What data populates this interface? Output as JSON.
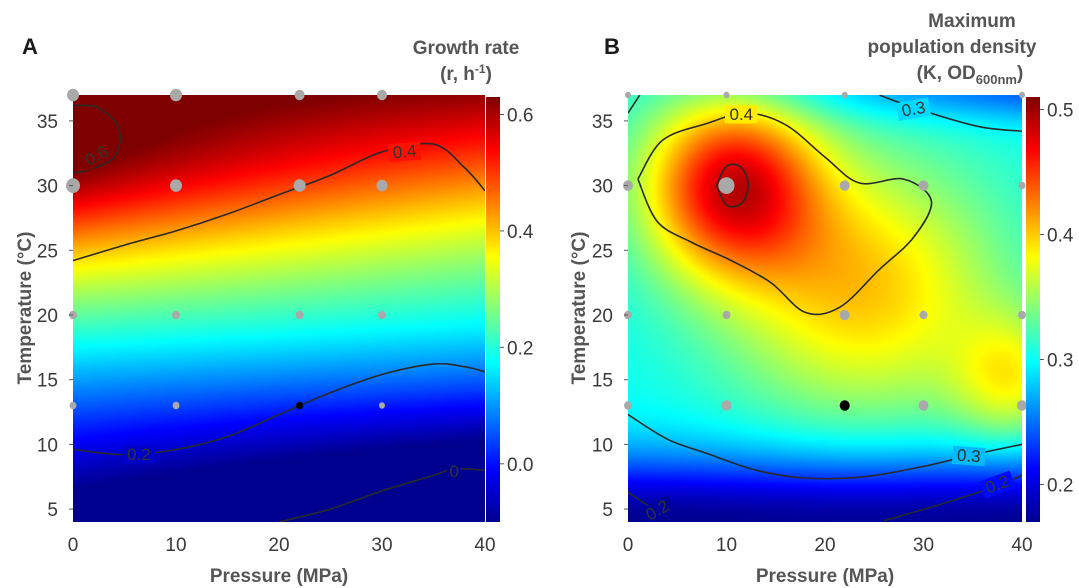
{
  "chart_data": [
    {
      "type": "heatmap",
      "panel_label": "A",
      "colorbar_title": [
        "Growth rate",
        "(r, h",
        "-1",
        ")"
      ],
      "xlabel": "Pressure (MPa)",
      "ylabel": "Temperature (°C)",
      "xlim": [
        0,
        40
      ],
      "ylim": [
        4,
        37
      ],
      "x_ticks": [
        "0",
        "10",
        "20",
        "30",
        "40"
      ],
      "y_ticks": [
        "5",
        "10",
        "15",
        "20",
        "25",
        "30",
        "35"
      ],
      "colorbar_range": [
        -0.1,
        0.63
      ],
      "colorbar_ticks": [
        "0.0",
        "0.2",
        "0.4",
        "0.6"
      ],
      "contours": [
        {
          "level": 0.6,
          "label": "0.6",
          "points": [
            [
              0,
              36.2
            ],
            [
              2.5,
              36.0
            ],
            [
              4.5,
              34.3
            ],
            [
              4.0,
              32.2
            ],
            [
              1.5,
              31.2
            ],
            [
              0,
              31.0
            ]
          ]
        },
        {
          "level": 0.4,
          "label": "0.4",
          "points": [
            [
              0,
              24.2
            ],
            [
              5,
              25.4
            ],
            [
              10,
              26.5
            ],
            [
              15,
              27.8
            ],
            [
              20,
              29.3
            ],
            [
              25,
              30.8
            ],
            [
              30,
              32.6
            ],
            [
              35,
              33.2
            ],
            [
              38,
              31.4
            ],
            [
              40,
              29.6
            ]
          ]
        },
        {
          "level": 0.2,
          "label": "0.2",
          "points": [
            [
              0,
              9.6
            ],
            [
              5,
              9.2
            ],
            [
              10,
              9.6
            ],
            [
              15,
              10.6
            ],
            [
              20,
              12.3
            ],
            [
              25,
              14.0
            ],
            [
              30,
              15.4
            ],
            [
              35,
              16.2
            ],
            [
              38,
              16.0
            ],
            [
              40,
              15.6
            ]
          ]
        },
        {
          "level": 0.0,
          "label": "0",
          "points": [
            [
              20,
              4.0
            ],
            [
              25,
              5.0
            ],
            [
              30,
              6.4
            ],
            [
              35,
              7.6
            ],
            [
              37,
              8.1
            ],
            [
              40,
              8.0
            ]
          ]
        }
      ],
      "contour_labels": [
        {
          "text": "0.6",
          "at": [
            2.3,
            32.3
          ],
          "angle": -30
        },
        {
          "text": "0.4",
          "at": [
            32.2,
            32.6
          ],
          "angle": -5
        },
        {
          "text": "0.2",
          "at": [
            6.4,
            9.2
          ],
          "angle": 0
        },
        {
          "text": "0",
          "at": [
            37.0,
            7.9
          ],
          "angle": 0
        }
      ],
      "samples": [
        {
          "x": 0,
          "y": 37,
          "r": 6
        },
        {
          "x": 10,
          "y": 37,
          "r": 6
        },
        {
          "x": 22,
          "y": 37,
          "r": 5
        },
        {
          "x": 30,
          "y": 37,
          "r": 5
        },
        {
          "x": 0,
          "y": 30,
          "r": 7
        },
        {
          "x": 10,
          "y": 30,
          "r": 6
        },
        {
          "x": 22,
          "y": 30,
          "r": 6
        },
        {
          "x": 30,
          "y": 30,
          "r": 5.5
        },
        {
          "x": 0,
          "y": 20,
          "r": 4
        },
        {
          "x": 10,
          "y": 20,
          "r": 4
        },
        {
          "x": 22,
          "y": 20,
          "r": 4
        },
        {
          "x": 30,
          "y": 20,
          "r": 4
        },
        {
          "x": 0,
          "y": 13,
          "r": 3.5
        },
        {
          "x": 10,
          "y": 13,
          "r": 3.5
        },
        {
          "x": 22,
          "y": 13,
          "r": 3.5,
          "color": "#000000"
        },
        {
          "x": 30,
          "y": 13,
          "r": 3
        }
      ]
    },
    {
      "type": "heatmap",
      "panel_label": "B",
      "colorbar_title": [
        "Maximum",
        "population density",
        "(K, OD",
        "600nm",
        ")"
      ],
      "xlabel": "Pressure (MPa)",
      "ylabel": "Temperature (°C)",
      "xlim": [
        0,
        40
      ],
      "ylim": [
        4,
        37
      ],
      "x_ticks": [
        "0",
        "10",
        "20",
        "30",
        "40"
      ],
      "y_ticks": [
        "5",
        "10",
        "15",
        "20",
        "25",
        "30",
        "35"
      ],
      "colorbar_range": [
        0.17,
        0.51
      ],
      "colorbar_ticks": [
        "0.2",
        "0.3",
        "0.4",
        "0.5"
      ],
      "contours": [
        {
          "level": 0.4,
          "label": "0.4",
          "points": [
            [
              1.0,
              30.5
            ],
            [
              3.5,
              33.5
            ],
            [
              8,
              34.8
            ],
            [
              12,
              35.6
            ],
            [
              16,
              34.7
            ],
            [
              20,
              32.2
            ],
            [
              23.5,
              30.2
            ],
            [
              28,
              30.5
            ],
            [
              30.8,
              28.8
            ],
            [
              29,
              26
            ],
            [
              25.5,
              23.5
            ],
            [
              21.5,
              20.6
            ],
            [
              18,
              20.2
            ],
            [
              14.5,
              22.5
            ],
            [
              10.5,
              24.2
            ],
            [
              6.5,
              25.6
            ],
            [
              3,
              27.2
            ],
            [
              1.0,
              30.5
            ]
          ]
        },
        {
          "level": 0.5,
          "label": "",
          "points": [
            [
              9.0,
              30.0
            ],
            [
              10.0,
              31.5
            ],
            [
              11.5,
              31.4
            ],
            [
              12.2,
              30.0
            ],
            [
              11.5,
              28.6
            ],
            [
              10.0,
              28.5
            ],
            [
              9.0,
              30.0
            ]
          ]
        },
        {
          "level": 0.3,
          "label": "0.3",
          "points": [
            [
              25.5,
              37
            ],
            [
              28,
              36.3
            ],
            [
              32,
              35.3
            ],
            [
              36,
              34.5
            ],
            [
              40,
              34.2
            ]
          ]
        },
        {
          "level": 0.3,
          "label": "",
          "points": [
            [
              0,
              35.6
            ],
            [
              1.2,
              37
            ]
          ]
        },
        {
          "level": 0.3,
          "label": "0.3",
          "points": [
            [
              0,
              12.3
            ],
            [
              4,
              10.4
            ],
            [
              8,
              9.3
            ],
            [
              13,
              8.0
            ],
            [
              18,
              7.4
            ],
            [
              24,
              7.5
            ],
            [
              30,
              8.3
            ],
            [
              35,
              9.2
            ],
            [
              40,
              10.0
            ]
          ]
        },
        {
          "level": 0.2,
          "label": "0.2",
          "points": [
            [
              0,
              6.3
            ],
            [
              2,
              5.3
            ],
            [
              4,
              4.5
            ]
          ]
        },
        {
          "level": 0.2,
          "label": "0.2",
          "points": [
            [
              26,
              4.1
            ],
            [
              31,
              5.2
            ],
            [
              36,
              6.4
            ],
            [
              40,
              7.6
            ]
          ]
        }
      ],
      "contour_labels": [
        {
          "text": "0.4",
          "at": [
            11.5,
            35.5
          ],
          "angle": 0
        },
        {
          "text": "0.3",
          "at": [
            29.0,
            35.9
          ],
          "angle": -10
        },
        {
          "text": "0.3",
          "at": [
            34.6,
            9.1
          ],
          "angle": 4
        },
        {
          "text": "0.2",
          "at": [
            3.0,
            4.9
          ],
          "angle": -30
        },
        {
          "text": "0.2",
          "at": [
            37.5,
            6.9
          ],
          "angle": -20
        }
      ],
      "samples": [
        {
          "x": 0,
          "y": 37,
          "r": 3
        },
        {
          "x": 10,
          "y": 37,
          "r": 3
        },
        {
          "x": 22,
          "y": 37,
          "r": 3
        },
        {
          "x": 40,
          "y": 37,
          "r": 3
        },
        {
          "x": 0,
          "y": 30,
          "r": 5
        },
        {
          "x": 10,
          "y": 30,
          "r": 8
        },
        {
          "x": 22,
          "y": 30,
          "r": 5
        },
        {
          "x": 30,
          "y": 30,
          "r": 5
        },
        {
          "x": 40,
          "y": 30,
          "r": 3.5
        },
        {
          "x": 0,
          "y": 20,
          "r": 4
        },
        {
          "x": 10,
          "y": 20,
          "r": 4
        },
        {
          "x": 22,
          "y": 20,
          "r": 5
        },
        {
          "x": 30,
          "y": 20,
          "r": 4
        },
        {
          "x": 40,
          "y": 20,
          "r": 4
        },
        {
          "x": 0,
          "y": 13,
          "r": 4
        },
        {
          "x": 10,
          "y": 13,
          "r": 5
        },
        {
          "x": 22,
          "y": 13,
          "r": 5,
          "color": "#000000"
        },
        {
          "x": 30,
          "y": 13,
          "r": 5
        },
        {
          "x": 40,
          "y": 13,
          "r": 5
        }
      ]
    }
  ]
}
